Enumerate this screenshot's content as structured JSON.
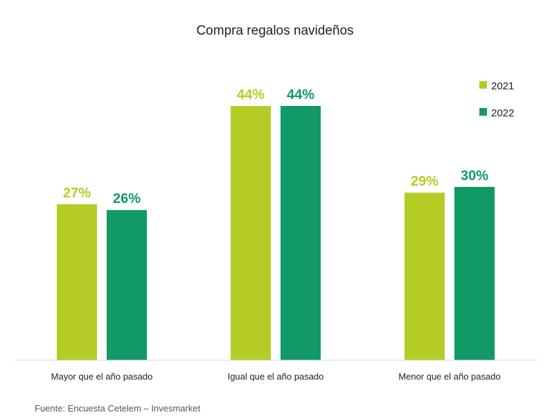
{
  "chart_data": {
    "type": "bar",
    "title": "Compra regalos navideños",
    "categories": [
      "Mayor que el año pasado",
      "Igual que el año pasado",
      "Menor que el año pasado"
    ],
    "series": [
      {
        "name": "2021",
        "values": [
          27,
          44,
          29
        ],
        "labels": [
          "27%",
          "44%",
          "29%"
        ],
        "color": "#b5cc26"
      },
      {
        "name": "2022",
        "values": [
          26,
          44,
          30
        ],
        "labels": [
          "26%",
          "44%",
          "30%"
        ],
        "color": "#119966"
      }
    ],
    "ylim": [
      0,
      100
    ],
    "grid": false,
    "legend": "top-right"
  },
  "source": "Fuente: Encuesta Cetelem – Invesmarket"
}
